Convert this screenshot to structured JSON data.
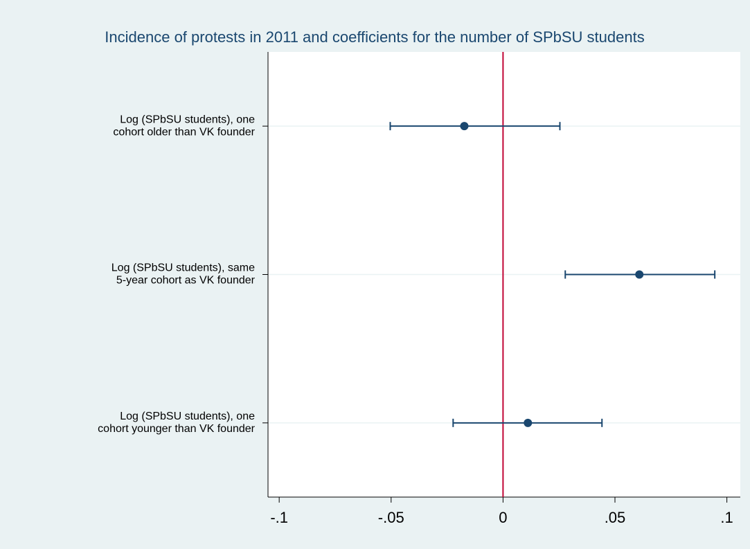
{
  "chart_data": {
    "type": "coefplot",
    "title": "Incidence of protests in 2011 and coefficients for the number of SPbSU students",
    "categories": [
      [
        "Log (SPbSU students), one",
        "cohort older than VK founder"
      ],
      [
        "Log (SPbSU students), same",
        "5-year cohort as VK founder"
      ],
      [
        "Log (SPbSU students), one",
        "cohort younger than VK founder"
      ]
    ],
    "values": [
      -0.0173,
      0.0609,
      0.0111
    ],
    "lower": [
      -0.0504,
      0.0278,
      -0.0223
    ],
    "upper": [
      0.0254,
      0.0946,
      0.0442
    ],
    "color": "#1a476f",
    "reference_line": 0,
    "reference_color": "#c10534",
    "xlim": [
      -0.105,
      0.106
    ],
    "xticks": [
      {
        "value": -0.1,
        "label": "-.1"
      },
      {
        "value": -0.05,
        "label": "-.05"
      },
      0,
      {
        "value": 0.05,
        "label": ".05"
      },
      {
        "value": 0.1,
        "label": ".1"
      }
    ],
    "grid": true
  }
}
